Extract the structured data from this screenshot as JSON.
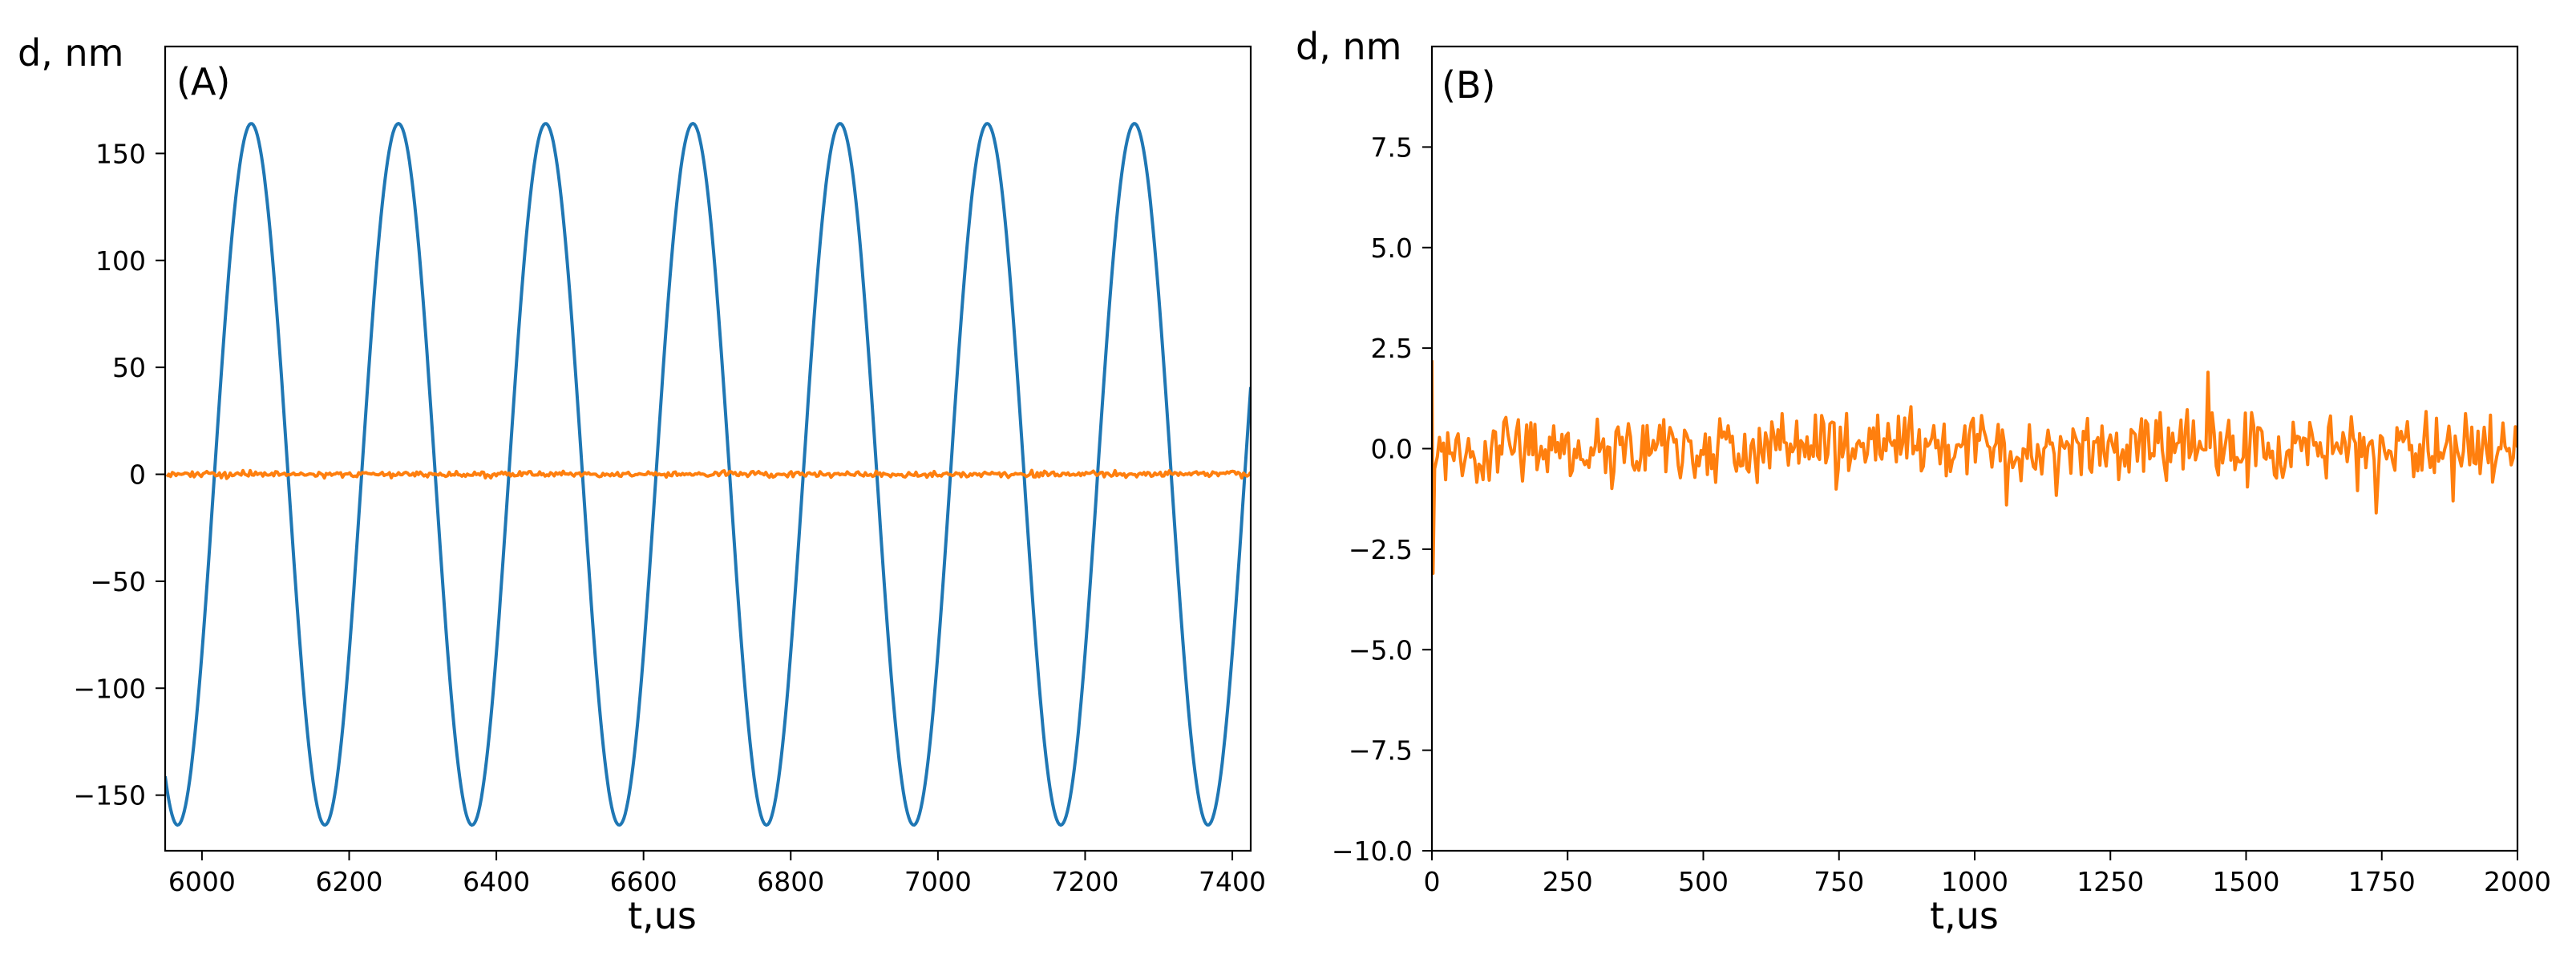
{
  "colors": {
    "blue": "#1f77b4",
    "orange": "#ff7f0e",
    "axis": "#000000"
  },
  "chart_data": [
    {
      "type": "line",
      "panel_label": "(A)",
      "xlabel": "t,us",
      "ylabel": "d, nm",
      "xlim": [
        5950,
        7425
      ],
      "ylim": [
        -176,
        200
      ],
      "xticks": [
        6000,
        6200,
        6400,
        6600,
        6800,
        7000,
        7200,
        7400
      ],
      "xtick_labels": [
        "6000",
        "6200",
        "6400",
        "6600",
        "6800",
        "7000",
        "7200",
        "7400"
      ],
      "yticks": [
        -150,
        -100,
        -50,
        0,
        50,
        100,
        150
      ],
      "ytick_labels": [
        "−150",
        "−100",
        "−50",
        "0",
        "50",
        "100",
        "150"
      ],
      "grid": false,
      "series": [
        {
          "color": "#1f77b4",
          "model": "sine",
          "amplitude": 164,
          "period_us": 200,
          "peak_at_us": 6067,
          "x_range": [
            5950,
            7425
          ]
        },
        {
          "color": "#ff7f0e",
          "model": "noise",
          "amplitude": 1,
          "x_range": [
            5950,
            7425
          ]
        }
      ]
    },
    {
      "type": "line",
      "panel_label": "(B)",
      "xlabel": "t,us",
      "ylabel": "d, nm",
      "xlim": [
        0,
        2000
      ],
      "ylim": [
        -10,
        10
      ],
      "xticks": [
        0,
        250,
        500,
        750,
        1000,
        1250,
        1500,
        1750,
        2000
      ],
      "xtick_labels": [
        "0",
        "250",
        "500",
        "750",
        "1000",
        "1250",
        "1500",
        "1750",
        "2000"
      ],
      "yticks": [
        -10.0,
        -7.5,
        -5.0,
        -2.5,
        0.0,
        2.5,
        5.0,
        7.5
      ],
      "ytick_labels": [
        "−10.0",
        "−7.5",
        "−5.0",
        "−2.5",
        "0.0",
        "2.5",
        "5.0",
        "7.5"
      ],
      "grid": false,
      "series": [
        {
          "color": "#ff7f0e",
          "model": "noise",
          "amplitude": 0.6,
          "initial_transient": {
            "x": [
              0,
              2,
              5,
              10
            ],
            "y": [
              2.2,
              -3.1,
              -0.5,
              -0.2
            ]
          },
          "spikes": {
            "x": [
              1430,
              1740,
              1060,
              1880
            ],
            "y": [
              1.9,
              -1.6,
              -1.4,
              -1.3
            ]
          },
          "x_range": [
            0,
            2000
          ]
        }
      ]
    }
  ]
}
